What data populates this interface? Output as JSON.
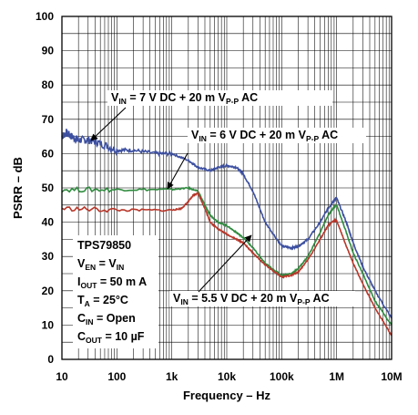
{
  "chart_data": {
    "type": "line",
    "xlabel": "Frequency – Hz",
    "ylabel": "PSRR – dB",
    "xscale": "log",
    "xlim": [
      10,
      10000000
    ],
    "ylim": [
      0,
      100
    ],
    "grid": true,
    "x_tick_labels": [
      "10",
      "100",
      "1k",
      "10k",
      "100k",
      "1M",
      "10M"
    ],
    "y_tick_labels": [
      "0",
      "10",
      "20",
      "30",
      "40",
      "50",
      "60",
      "70",
      "80",
      "90",
      "100"
    ],
    "series": [
      {
        "color": "#3c4fa0",
        "x": [
          10,
          12,
          15,
          20,
          30,
          50,
          100,
          200,
          500,
          1000,
          2000,
          3000,
          5000,
          7000,
          10000,
          15000,
          20000,
          30000,
          50000,
          100000,
          150000,
          200000,
          300000,
          500000,
          700000,
          900000,
          1000000,
          1500000,
          2000000,
          3000000,
          5000000,
          10000000
        ],
        "y": [
          65,
          66,
          65,
          64,
          64,
          63,
          61,
          61,
          60,
          60,
          58,
          56,
          55,
          56,
          56.5,
          56,
          54,
          49,
          40,
          33,
          32.5,
          33,
          35,
          40,
          44,
          46.5,
          47,
          40,
          34,
          27,
          20,
          12
        ]
      },
      {
        "color": "#2e8b3e",
        "x": [
          10,
          100,
          1000,
          2000,
          3000,
          4000,
          5000,
          7000,
          10000,
          15000,
          20000,
          30000,
          50000,
          100000,
          150000,
          200000,
          300000,
          500000,
          700000,
          900000,
          1000000,
          1500000,
          2000000,
          3000000,
          5000000,
          10000000
        ],
        "y": [
          49.5,
          49.5,
          49.5,
          50,
          49,
          45,
          42,
          40,
          39,
          37,
          35.5,
          32.5,
          28,
          24.5,
          25,
          26.5,
          30,
          37,
          42,
          44.5,
          45,
          37,
          31,
          25,
          17,
          10
        ]
      },
      {
        "color": "#b8372a",
        "x": [
          10,
          100,
          1000,
          1500,
          2000,
          2500,
          3000,
          4000,
          5000,
          7000,
          10000,
          15000,
          20000,
          30000,
          50000,
          100000,
          150000,
          200000,
          300000,
          500000,
          700000,
          900000,
          1000000,
          1500000,
          2000000,
          3000000,
          5000000,
          10000000
        ],
        "y": [
          44,
          43.5,
          43.5,
          44,
          46,
          48,
          48.5,
          44,
          40,
          38,
          36.5,
          35,
          34,
          31,
          27.5,
          24,
          24.5,
          25.5,
          29,
          35,
          39,
          40.5,
          40.5,
          33,
          28,
          22,
          15,
          7
        ]
      }
    ],
    "annotations": [
      {
        "pre": "V",
        "sub": "IN",
        "post": " = 7 V DC + 20  m V",
        "sub2": "P-P",
        "post2": " AC"
      },
      {
        "pre": "V",
        "sub": "IN",
        "post": " = 6 V DC + 20  m V",
        "sub2": "P-P",
        "post2": " AC"
      },
      {
        "pre": "V",
        "sub": "IN",
        "post": " = 5.5 V DC + 20  m V",
        "sub2": "P-P",
        "post2": " AC"
      }
    ],
    "conditions": [
      {
        "main": "TPS79850",
        "sub": "",
        "post": ""
      },
      {
        "main": "V",
        "sub": "EN",
        "post": " = V",
        "sub2": "IN"
      },
      {
        "main": "I",
        "sub": "OUT",
        "post": " = 50 m A"
      },
      {
        "main": "T",
        "sub": "A",
        "post": " = 25°C"
      },
      {
        "main": "C",
        "sub": "IN",
        "post": " = Open"
      },
      {
        "main": "C",
        "sub": "OUT",
        "post": " = 10 µF"
      }
    ]
  }
}
